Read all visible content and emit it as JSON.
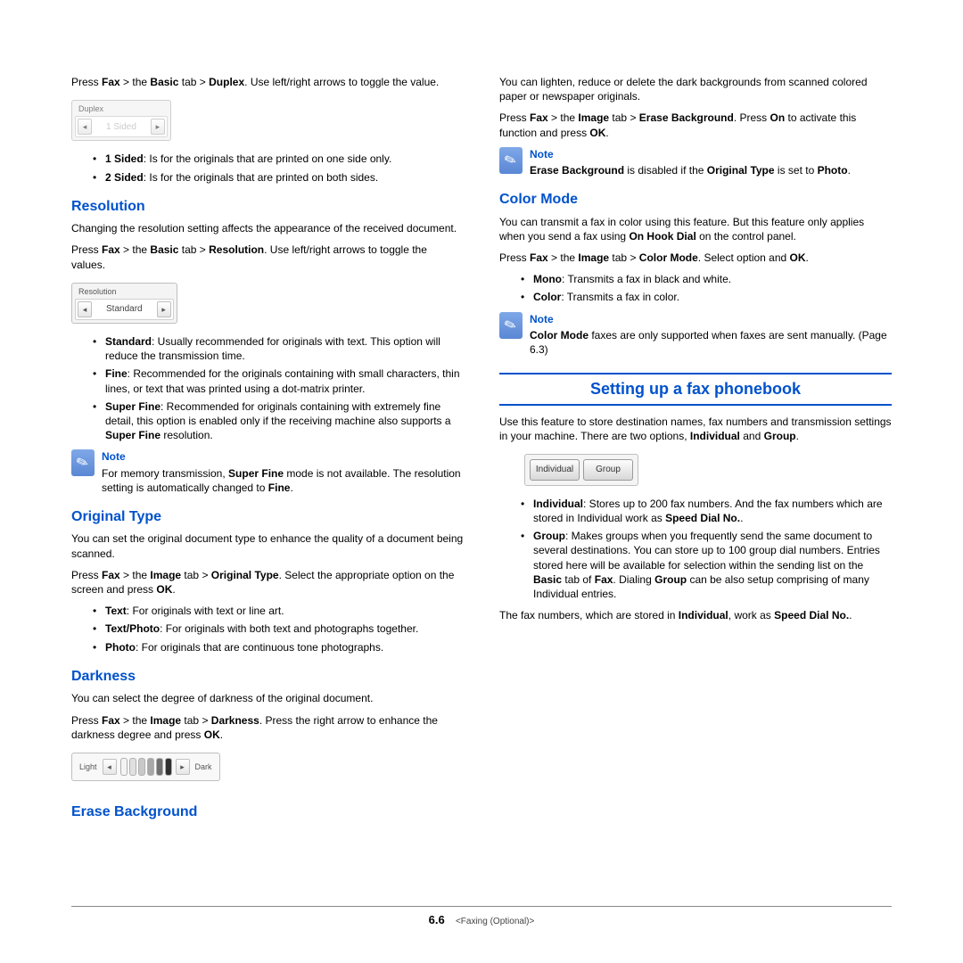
{
  "colors": {
    "heading": "#0052cc",
    "text": "#000000",
    "background": "#ffffff"
  },
  "typography": {
    "body_fontsize": 12,
    "subheading_fontsize": 16,
    "main_heading_fontsize": 18
  },
  "left": {
    "duplex": {
      "intro_1": "Press ",
      "intro_fax": "Fax",
      "intro_2": " > the ",
      "intro_basic": "Basic",
      "intro_3": " tab > ",
      "intro_duplex": "Duplex",
      "intro_4": ". Use left/right arrows to toggle the value.",
      "selector_label": "Duplex",
      "selector_value": "1 Sided",
      "b1_label": "1 Sided",
      "b1_text": ": Is for the originals that are printed on one side only.",
      "b2_label": "2 Sided",
      "b2_text": ": Is for the originals that are printed on both sides."
    },
    "resolution": {
      "heading": "Resolution",
      "p1": "Changing the resolution setting affects the appearance of the received document.",
      "nav_1": "Press ",
      "nav_fax": "Fax",
      "nav_2": " > the ",
      "nav_basic": "Basic",
      "nav_3": " tab > ",
      "nav_res": "Resolution",
      "nav_4": ". Use left/right arrows to toggle the values.",
      "selector_label": "Resolution",
      "selector_value": "Standard",
      "b1_label": "Standard",
      "b1_text": ": Usually recommended for originals with text. This option will reduce the transmission time.",
      "b2_label": "Fine",
      "b2_text": ": Recommended for the originals containing with small characters, thin lines, or text that was printed using a dot-matrix printer.",
      "b3_label": "Super Fine",
      "b3_text_a": ": Recommended for originals containing with extremely fine detail, this option is enabled only if the receiving machine also supports a ",
      "b3_sf": "Super Fine",
      "b3_text_b": " resolution.",
      "note_label": "Note",
      "note_a": "For memory transmission, ",
      "note_sf": "Super Fine",
      "note_b": " mode is not available. The resolution setting is automatically changed to ",
      "note_fine": "Fine",
      "note_c": "."
    },
    "original_type": {
      "heading": "Original Type",
      "p1": "You can set the original document type to enhance the quality of a document being scanned.",
      "nav_1": "Press ",
      "nav_fax": "Fax",
      "nav_2": " > the ",
      "nav_img": "Image",
      "nav_3": " tab > ",
      "nav_ot": "Original Type",
      "nav_4": ". Select the appropriate option on the screen and press ",
      "nav_ok": "OK",
      "nav_5": ".",
      "b1_label": "Text",
      "b1_text": ": For originals with text or line art.",
      "b2_label": "Text/Photo",
      "b2_text": ": For originals with both text and photographs together.",
      "b3_label": "Photo",
      "b3_text": ": For originals that are continuous tone photographs."
    },
    "darkness": {
      "heading": "Darkness",
      "p1": "You can select the degree of darkness of the original document.",
      "nav_1": "Press ",
      "nav_fax": "Fax",
      "nav_2": " > the ",
      "nav_img": "Image",
      "nav_3": " tab > ",
      "nav_dk": "Darkness",
      "nav_4": ". Press the right arrow to enhance the darkness degree and press ",
      "nav_ok": "OK",
      "nav_5": ".",
      "label_light": "Light",
      "label_dark": "Dark"
    },
    "erase_bg": {
      "heading": "Erase Background"
    }
  },
  "right": {
    "erase_bg": {
      "p1": "You can lighten, reduce or delete the dark backgrounds from scanned colored paper or newspaper originals.",
      "nav_1": "Press ",
      "nav_fax": "Fax",
      "nav_2": " > the ",
      "nav_img": "Image",
      "nav_3": " tab > ",
      "nav_eb": "Erase Background",
      "nav_4": ". Press ",
      "nav_on": "On",
      "nav_5": " to activate this function and press ",
      "nav_ok": "OK",
      "nav_6": ".",
      "note_label": "Note",
      "note_eb": "Erase Background",
      "note_a": " is disabled if the ",
      "note_ot": "Original Type",
      "note_b": " is set to ",
      "note_photo": "Photo",
      "note_c": "."
    },
    "color_mode": {
      "heading": "Color Mode",
      "p1_a": "You can transmit a fax in color using this feature. But this feature only applies when you send a fax using ",
      "p1_ohd": "On Hook Dial",
      "p1_b": " on the control panel.",
      "nav_1": "Press ",
      "nav_fax": "Fax",
      "nav_2": " > the ",
      "nav_img": "Image",
      "nav_3": " tab > ",
      "nav_cm": "Color Mode",
      "nav_4": ". Select option and ",
      "nav_ok": "OK",
      "nav_5": ".",
      "b1_label": "Mono",
      "b1_text": ": Transmits a fax in black and white.",
      "b2_label": "Color",
      "b2_text": ": Transmits a fax in color.",
      "note_label": "Note",
      "note_cm": "Color Mode",
      "note_a": " faxes are only supported when faxes are sent manually. (Page 6.3)"
    },
    "phonebook": {
      "heading": "Setting up a fax phonebook",
      "p1_a": "Use this feature to store destination names, fax numbers and transmission settings in your machine. There are two options, ",
      "p1_ind": "Individual",
      "p1_b": " and ",
      "p1_grp": "Group",
      "p1_c": ".",
      "btn_individual": "Individual",
      "btn_group": "Group",
      "b1_label": "Individual",
      "b1_a": ": Stores up to 200 fax numbers. And the fax numbers which are stored in Individual work as ",
      "b1_sdn": "Speed Dial No.",
      "b1_b": ".",
      "b2_label": "Group",
      "b2_a": ": Makes groups when you frequently send the same document to several destinations. You can store up to 100 group dial numbers. Entries stored here will be available for selection within the sending list on the ",
      "b2_basic": "Basic",
      "b2_b": " tab of ",
      "b2_fax": "Fax",
      "b2_c": ". Dialing ",
      "b2_grp": "Group",
      "b2_d": " can be also setup comprising of many Individual entries.",
      "p2_a": "The fax numbers, which are stored in ",
      "p2_ind": "Individual",
      "p2_b": ", work as ",
      "p2_sdn": "Speed Dial No.",
      "p2_c": "."
    }
  },
  "footer": {
    "page": "6.6",
    "section": "<Faxing (Optional)>"
  }
}
